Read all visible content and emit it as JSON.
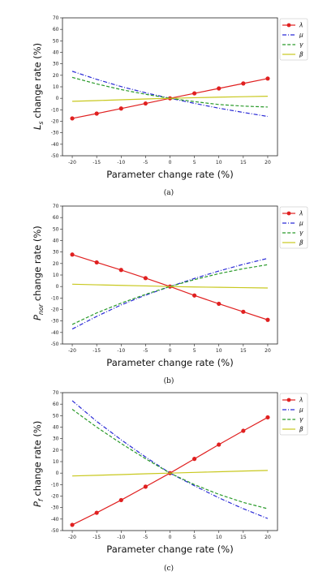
{
  "chart_data": [
    {
      "type": "line",
      "caption": "(a)",
      "x": [
        -20,
        -15,
        -10,
        -5,
        0,
        5,
        10,
        15,
        20
      ],
      "xticks": [
        -20,
        -15,
        -10,
        -5,
        0,
        5,
        10,
        15,
        20
      ],
      "yticks": [
        -50,
        -40,
        -30,
        -20,
        -10,
        0,
        10,
        20,
        30,
        40,
        50,
        60,
        70
      ],
      "xlim": [
        -22,
        22
      ],
      "ylim": [
        -50,
        70
      ],
      "xlabel": "Parameter change rate (%)",
      "ylabel_main": "L",
      "ylabel_sub": "s",
      "ylabel_rest": " change rate (%)",
      "legend_position": "outside-top-right",
      "series": [
        {
          "name": "λ",
          "color": "#e02020",
          "style": "solid",
          "marker": "circle",
          "values": [
            -17.5,
            -13.3,
            -8.9,
            -4.5,
            0,
            4.3,
            8.6,
            12.9,
            17.2
          ]
        },
        {
          "name": "μ",
          "color": "#2a2ad6",
          "style": "dashdot",
          "marker": "none",
          "values": [
            23.5,
            16.5,
            10.2,
            4.8,
            0,
            -4.4,
            -8.6,
            -12.3,
            -15.8
          ]
        },
        {
          "name": "γ",
          "color": "#2a9a2a",
          "style": "dashed",
          "marker": "none",
          "values": [
            18.2,
            12.5,
            7.6,
            3.5,
            0,
            -2.9,
            -5.4,
            -6.8,
            -7.6
          ]
        },
        {
          "name": "β",
          "color": "#c8c81e",
          "style": "solid",
          "marker": "none",
          "values": [
            -2.6,
            -2.0,
            -1.3,
            -0.6,
            0,
            0.5,
            1.0,
            1.4,
            1.8
          ]
        }
      ]
    },
    {
      "type": "line",
      "caption": "(b)",
      "x": [
        -20,
        -15,
        -10,
        -5,
        0,
        5,
        10,
        15,
        20
      ],
      "xticks": [
        -20,
        -15,
        -10,
        -5,
        0,
        5,
        10,
        15,
        20
      ],
      "yticks": [
        -50,
        -40,
        -30,
        -20,
        -10,
        0,
        10,
        20,
        30,
        40,
        50,
        60,
        70
      ],
      "xlim": [
        -22,
        22
      ],
      "ylim": [
        -50,
        70
      ],
      "xlabel": "Parameter change rate (%)",
      "ylabel_main": "P",
      "ylabel_sub": "nor",
      "ylabel_rest": " change rate (%)",
      "legend_position": "outside-top-right",
      "series": [
        {
          "name": "λ",
          "color": "#e02020",
          "style": "solid",
          "marker": "circle",
          "values": [
            27.8,
            21.0,
            14.4,
            7.3,
            0,
            -7.8,
            -15.0,
            -22.0,
            -29.0
          ]
        },
        {
          "name": "μ",
          "color": "#2a2ad6",
          "style": "dashdot",
          "marker": "none",
          "values": [
            -37.0,
            -26.0,
            -16.0,
            -7.5,
            0,
            7.0,
            13.5,
            19.3,
            24.5
          ]
        },
        {
          "name": "γ",
          "color": "#2a9a2a",
          "style": "dashed",
          "marker": "none",
          "values": [
            -33.0,
            -23.0,
            -14.5,
            -6.8,
            0,
            6.0,
            11.2,
            15.5,
            19.0
          ]
        },
        {
          "name": "β",
          "color": "#c8c81e",
          "style": "solid",
          "marker": "none",
          "values": [
            2.0,
            1.5,
            1.0,
            0.5,
            0,
            -0.4,
            -0.7,
            -1.0,
            -1.3
          ]
        }
      ]
    },
    {
      "type": "line",
      "caption": "(c)",
      "x": [
        -20,
        -15,
        -10,
        -5,
        0,
        5,
        10,
        15,
        20
      ],
      "xticks": [
        -20,
        -15,
        -10,
        -5,
        0,
        5,
        10,
        15,
        20
      ],
      "yticks": [
        -50,
        -40,
        -30,
        -20,
        -10,
        0,
        10,
        20,
        30,
        40,
        50,
        60,
        70
      ],
      "xlim": [
        -22,
        22
      ],
      "ylim": [
        -50,
        70
      ],
      "xlabel": "Parameter change rate (%)",
      "ylabel_main": "P",
      "ylabel_sub": "f",
      "ylabel_rest": " change rate (%)",
      "legend_position": "outside-top-right",
      "series": [
        {
          "name": "λ",
          "color": "#e02020",
          "style": "solid",
          "marker": "circle",
          "values": [
            -45.0,
            -34.5,
            -23.5,
            -11.8,
            0,
            12.4,
            24.8,
            36.8,
            48.5
          ]
        },
        {
          "name": "μ",
          "color": "#2a2ad6",
          "style": "dashdot",
          "marker": "none",
          "values": [
            63.0,
            45.0,
            29.0,
            14.0,
            0,
            -11.0,
            -21.5,
            -31.0,
            -39.5
          ]
        },
        {
          "name": "γ",
          "color": "#2a9a2a",
          "style": "dashed",
          "marker": "none",
          "values": [
            55.5,
            40.0,
            25.8,
            12.5,
            0,
            -10.0,
            -18.5,
            -25.5,
            -31.0
          ]
        },
        {
          "name": "β",
          "color": "#c8c81e",
          "style": "solid",
          "marker": "none",
          "values": [
            -2.5,
            -1.9,
            -1.3,
            -0.6,
            0,
            0.6,
            1.2,
            1.8,
            2.3
          ]
        }
      ]
    }
  ]
}
